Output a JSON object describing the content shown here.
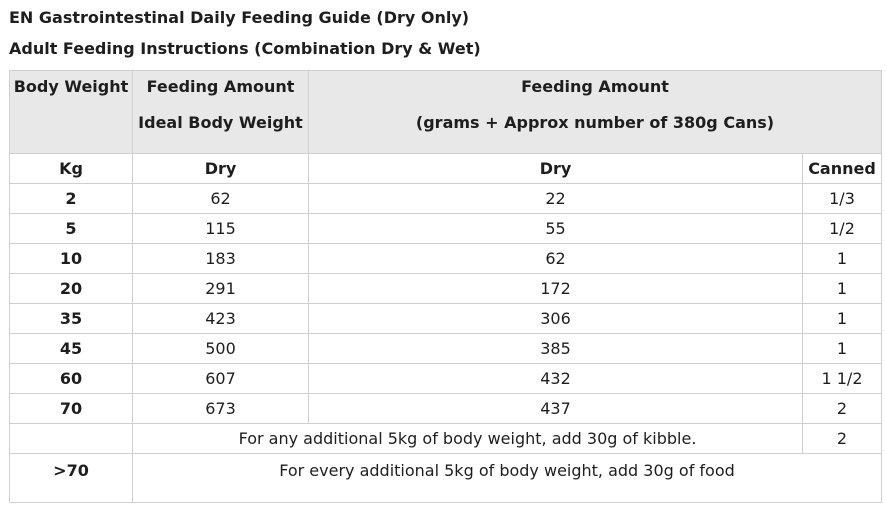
{
  "titles": {
    "line1": "EN Gastrointestinal Daily Feeding Guide (Dry Only)",
    "line2": "Adult Feeding Instructions (Combination Dry & Wet)"
  },
  "table": {
    "header": {
      "col1": "Body Weight",
      "col2_line1": "Feeding Amount",
      "col2_line2": "Ideal Body Weight",
      "col3_line1": "Feeding Amount",
      "col3_line2": "(grams + Approx number of 380g Cans)"
    },
    "subheader": {
      "kg": "Kg",
      "dry1": "Dry",
      "dry2": "Dry",
      "canned": "Canned"
    },
    "rows": [
      {
        "weight": "2",
        "dry_only": "62",
        "dry_combo": "22",
        "canned": "1/3"
      },
      {
        "weight": "5",
        "dry_only": "115",
        "dry_combo": "55",
        "canned": "1/2"
      },
      {
        "weight": "10",
        "dry_only": "183",
        "dry_combo": "62",
        "canned": "1"
      },
      {
        "weight": "20",
        "dry_only": "291",
        "dry_combo": "172",
        "canned": "1"
      },
      {
        "weight": "35",
        "dry_only": "423",
        "dry_combo": "306",
        "canned": "1"
      },
      {
        "weight": "45",
        "dry_only": "500",
        "dry_combo": "385",
        "canned": "1"
      },
      {
        "weight": "60",
        "dry_only": "607",
        "dry_combo": "432",
        "canned": "1 1/2"
      },
      {
        "weight": "70",
        "dry_only": "673",
        "dry_combo": "437",
        "canned": "2"
      }
    ],
    "note_row": {
      "weight": "",
      "text": "For any additional 5kg of body weight, add 30g of kibble.",
      "canned": "2"
    },
    "last_row": {
      "weight": ">70",
      "text": "For every additional 5kg of body weight, add 30g of food"
    }
  }
}
